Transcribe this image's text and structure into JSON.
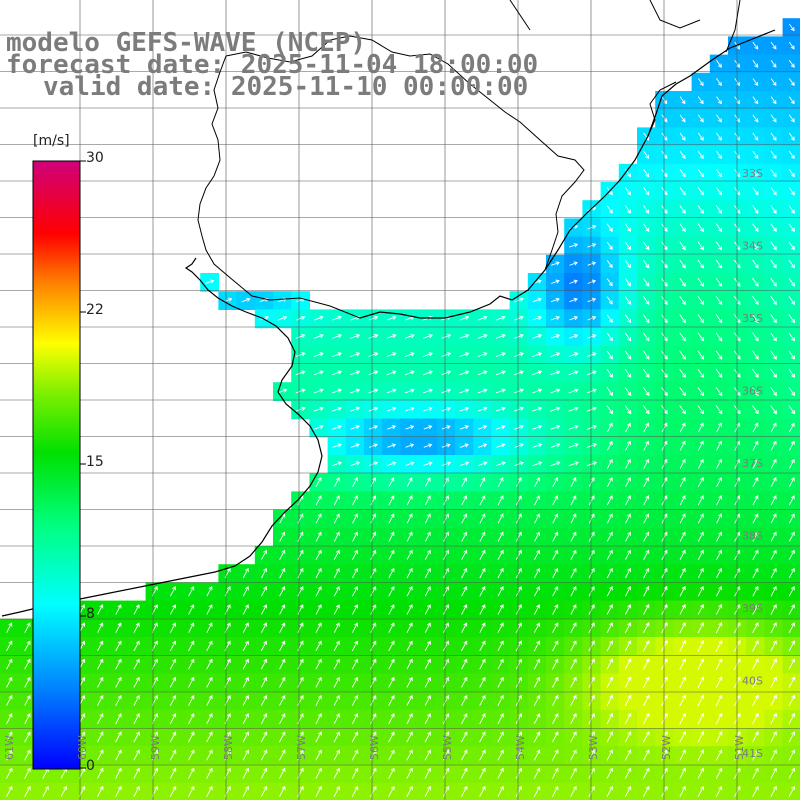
{
  "title": {
    "model": "modelo GEFS-WAVE (NCEP)",
    "forecast": "forecast date: 2025-11-04 18:00:00",
    "valid": "valid date: 2025-11-10 00:00:00"
  },
  "colorbar": {
    "unit": "[m/s]",
    "ticks": [
      "30",
      "22",
      "15",
      "8",
      "0"
    ],
    "range": [
      0,
      30
    ]
  },
  "latitude_labels": [
    "33S",
    "34S",
    "35S",
    "36S",
    "37S",
    "38S",
    "39S",
    "40S",
    "41S"
  ],
  "longitude_labels": [
    "61W",
    "60W",
    "59W",
    "58W",
    "57W",
    "56W",
    "55W",
    "54W",
    "53W",
    "52W",
    "51W"
  ],
  "colors": {
    "land": "#ffffff",
    "grid": "#555555",
    "coast": "#000000",
    "arrows": "#ffffff",
    "labels": "#7c7c7c"
  }
}
